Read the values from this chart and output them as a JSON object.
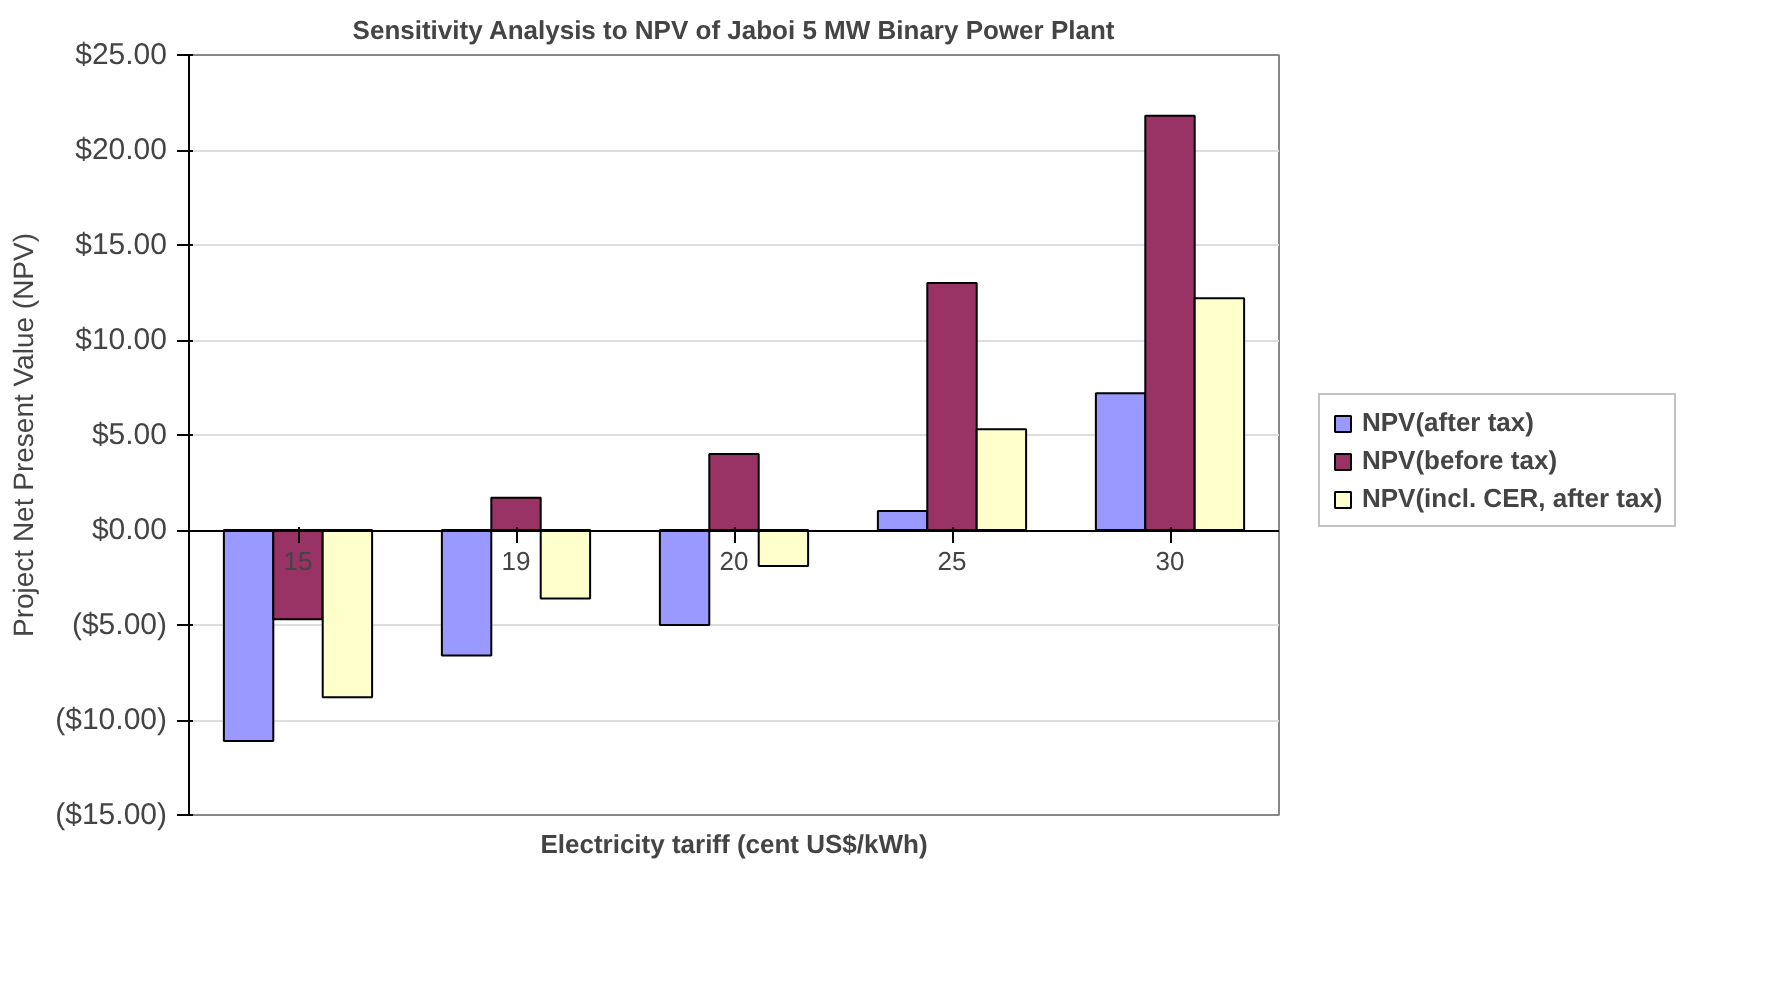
{
  "chart_data": {
    "type": "bar",
    "title": "Sensitivity Analysis to NPV of Jaboi 5 MW Binary Power Plant",
    "xlabel": "Electricity tariff (cent US$/kWh)",
    "ylabel": "Project Net Present Value (NPV)",
    "categories": [
      "15",
      "19",
      "20",
      "25",
      "30"
    ],
    "series": [
      {
        "name": "NPV(after tax)",
        "color": "#9999ff",
        "values": [
          -11.1,
          -6.6,
          -5.0,
          1.0,
          7.2
        ]
      },
      {
        "name": "NPV(before tax)",
        "color": "#993366",
        "values": [
          -4.7,
          1.7,
          4.0,
          13.0,
          21.8
        ]
      },
      {
        "name": "NPV(incl. CER, after tax)",
        "color": "#ffffcc",
        "values": [
          -8.8,
          -3.6,
          -1.9,
          5.3,
          12.2
        ]
      }
    ],
    "ylim": [
      -15,
      25
    ],
    "yticks": [
      {
        "value": -15,
        "label": "($15.00)"
      },
      {
        "value": -10,
        "label": "($10.00)"
      },
      {
        "value": -5,
        "label": "($5.00)"
      },
      {
        "value": 0,
        "label": "$0.00"
      },
      {
        "value": 5,
        "label": "$5.00"
      },
      {
        "value": 10,
        "label": "$10.00"
      },
      {
        "value": 15,
        "label": "$15.00"
      },
      {
        "value": 20,
        "label": "$20.00"
      },
      {
        "value": 25,
        "label": "$25.00"
      }
    ],
    "grid": "y",
    "legend": "right"
  }
}
